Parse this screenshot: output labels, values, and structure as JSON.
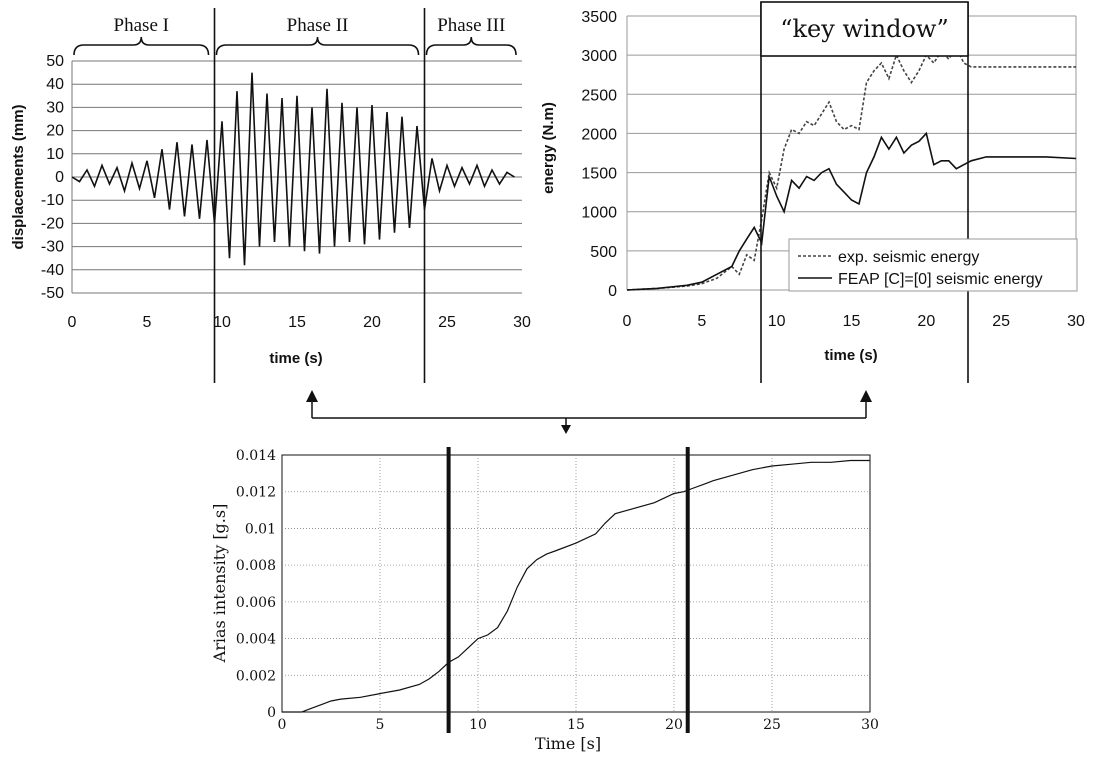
{
  "charts": {
    "disp": {
      "type": "line",
      "xlabel": "time (s)",
      "ylabel": "displacements (mm)",
      "xlim": [
        0,
        30
      ],
      "ylim": [
        -50,
        50
      ],
      "xticks": [
        0,
        5,
        10,
        15,
        20,
        25,
        30
      ],
      "yticks": [
        -50,
        -40,
        -30,
        -20,
        -10,
        0,
        10,
        20,
        30,
        40,
        50
      ],
      "grid": "horizontal",
      "phases": [
        {
          "label": "Phase I",
          "from": 0,
          "to": 9.5
        },
        {
          "label": "Phase II",
          "from": 9.5,
          "to": 23.5
        },
        {
          "label": "Phase III",
          "from": 23.5,
          "to": 30
        }
      ],
      "phase_dividers": [
        9.5,
        23.5
      ],
      "series": [
        {
          "x": [
            0,
            0.5,
            1,
            1.5,
            2,
            2.5,
            3,
            3.5,
            4,
            4.5,
            5,
            5.5,
            6,
            6.5,
            7,
            7.5,
            8,
            8.5,
            9,
            9.5,
            10,
            10.5,
            11,
            11.5,
            12,
            12.5,
            13,
            13.5,
            14,
            14.5,
            15,
            15.5,
            16,
            16.5,
            17,
            17.5,
            18,
            18.5,
            19,
            19.5,
            20,
            20.5,
            21,
            21.5,
            22,
            22.5,
            23,
            23.5,
            24,
            24.5,
            25,
            25.5,
            26,
            26.5,
            27,
            27.5,
            28,
            28.5,
            29,
            29.5
          ],
          "y": [
            0,
            -2,
            3,
            -4,
            5,
            -3,
            4,
            -6,
            6,
            -5,
            7,
            -9,
            12,
            -14,
            15,
            -17,
            14,
            -18,
            16,
            -20,
            24,
            -35,
            37,
            -38,
            45,
            -30,
            36,
            -28,
            34,
            -30,
            35,
            -32,
            30,
            -33,
            38,
            -30,
            32,
            -28,
            30,
            -29,
            31,
            -27,
            28,
            -24,
            26,
            -22,
            22,
            -14,
            8,
            -6,
            5,
            -4,
            4,
            -3,
            5,
            -4,
            3,
            -3,
            2,
            0
          ]
        }
      ]
    },
    "energy": {
      "type": "line",
      "xlabel": "time (s)",
      "ylabel": "energy (N.m)",
      "xlim": [
        0,
        30
      ],
      "ylim": [
        0,
        3500
      ],
      "xticks": [
        0,
        5,
        10,
        15,
        20,
        25,
        30
      ],
      "yticks": [
        0,
        500,
        1000,
        1500,
        2000,
        2500,
        3000,
        3500
      ],
      "grid": "horizontal",
      "key_window": {
        "label": "“key window”",
        "from": 9,
        "to": 22.8
      },
      "legend_position": "bottom-right",
      "series": [
        {
          "name": "exp. seismic energy",
          "style": "dotted",
          "x": [
            0,
            2,
            4,
            5,
            6,
            7,
            7.5,
            8,
            8.5,
            9,
            9.5,
            10,
            10.5,
            11,
            11.5,
            12,
            12.5,
            13,
            13.5,
            14,
            14.5,
            15,
            15.5,
            16,
            16.5,
            17,
            17.5,
            18,
            18.5,
            19,
            19.5,
            20,
            20.5,
            21,
            21.5,
            22,
            22.5,
            23,
            24,
            25,
            26,
            28,
            30
          ],
          "y": [
            0,
            20,
            50,
            80,
            150,
            300,
            200,
            450,
            380,
            900,
            1500,
            1300,
            1800,
            2050,
            2000,
            2150,
            2100,
            2250,
            2400,
            2150,
            2050,
            2100,
            2050,
            2650,
            2800,
            2900,
            2700,
            3000,
            2800,
            2650,
            2800,
            3000,
            2900,
            3050,
            2950,
            3100,
            2900,
            2850,
            2850,
            2850,
            2850,
            2850,
            2850
          ]
        },
        {
          "name": "FEAP [C]=[0] seismic energy",
          "style": "solid",
          "x": [
            0,
            2,
            4,
            5,
            6,
            7,
            7.5,
            8,
            8.5,
            9,
            9.5,
            10,
            10.5,
            11,
            11.5,
            12,
            12.5,
            13,
            13.5,
            14,
            14.5,
            15,
            15.5,
            16,
            16.5,
            17,
            17.5,
            18,
            18.5,
            19,
            19.5,
            20,
            20.5,
            21,
            21.5,
            22,
            22.5,
            23,
            24,
            25,
            26,
            28,
            30
          ],
          "y": [
            0,
            20,
            60,
            100,
            200,
            300,
            500,
            650,
            800,
            600,
            1450,
            1200,
            1000,
            1400,
            1300,
            1450,
            1400,
            1500,
            1550,
            1350,
            1250,
            1150,
            1100,
            1500,
            1700,
            1950,
            1800,
            1950,
            1750,
            1850,
            1900,
            2000,
            1600,
            1650,
            1650,
            1550,
            1600,
            1650,
            1700,
            1700,
            1700,
            1700,
            1680
          ]
        }
      ]
    },
    "arias": {
      "type": "line",
      "xlabel": "Time [s]",
      "ylabel": "Arias intensity [g.s]",
      "xlim": [
        0,
        30
      ],
      "ylim": [
        0,
        0.014
      ],
      "xticks": [
        "0",
        "5",
        "10",
        "15",
        "20",
        "25",
        "30"
      ],
      "yticks": [
        "0",
        "0.002",
        "0.004",
        "0.006",
        "0.008",
        "0.01",
        "0.012",
        "0.014"
      ],
      "grid": "dotted",
      "markers": [
        8.5,
        20.7
      ],
      "series": [
        {
          "x": [
            0,
            1,
            1.5,
            2,
            2.5,
            3,
            4,
            5,
            6,
            7,
            7.5,
            8,
            8.5,
            9,
            9.5,
            10,
            10.5,
            11,
            11.5,
            12,
            12.5,
            13,
            13.5,
            14,
            15,
            16,
            16.5,
            17,
            18,
            19,
            20,
            20.5,
            21,
            21.5,
            22,
            23,
            24,
            25,
            26,
            27,
            28,
            29,
            30
          ],
          "y": [
            0,
            0,
            0.0002,
            0.0004,
            0.0006,
            0.0007,
            0.0008,
            0.001,
            0.0012,
            0.0015,
            0.0018,
            0.0022,
            0.0027,
            0.003,
            0.0035,
            0.004,
            0.0042,
            0.0046,
            0.0055,
            0.0068,
            0.0078,
            0.0083,
            0.0086,
            0.0088,
            0.0092,
            0.0097,
            0.0103,
            0.0108,
            0.0111,
            0.0114,
            0.0119,
            0.012,
            0.0122,
            0.0124,
            0.0126,
            0.0129,
            0.0132,
            0.0134,
            0.0135,
            0.0136,
            0.0136,
            0.0137,
            0.0137
          ]
        }
      ]
    }
  }
}
